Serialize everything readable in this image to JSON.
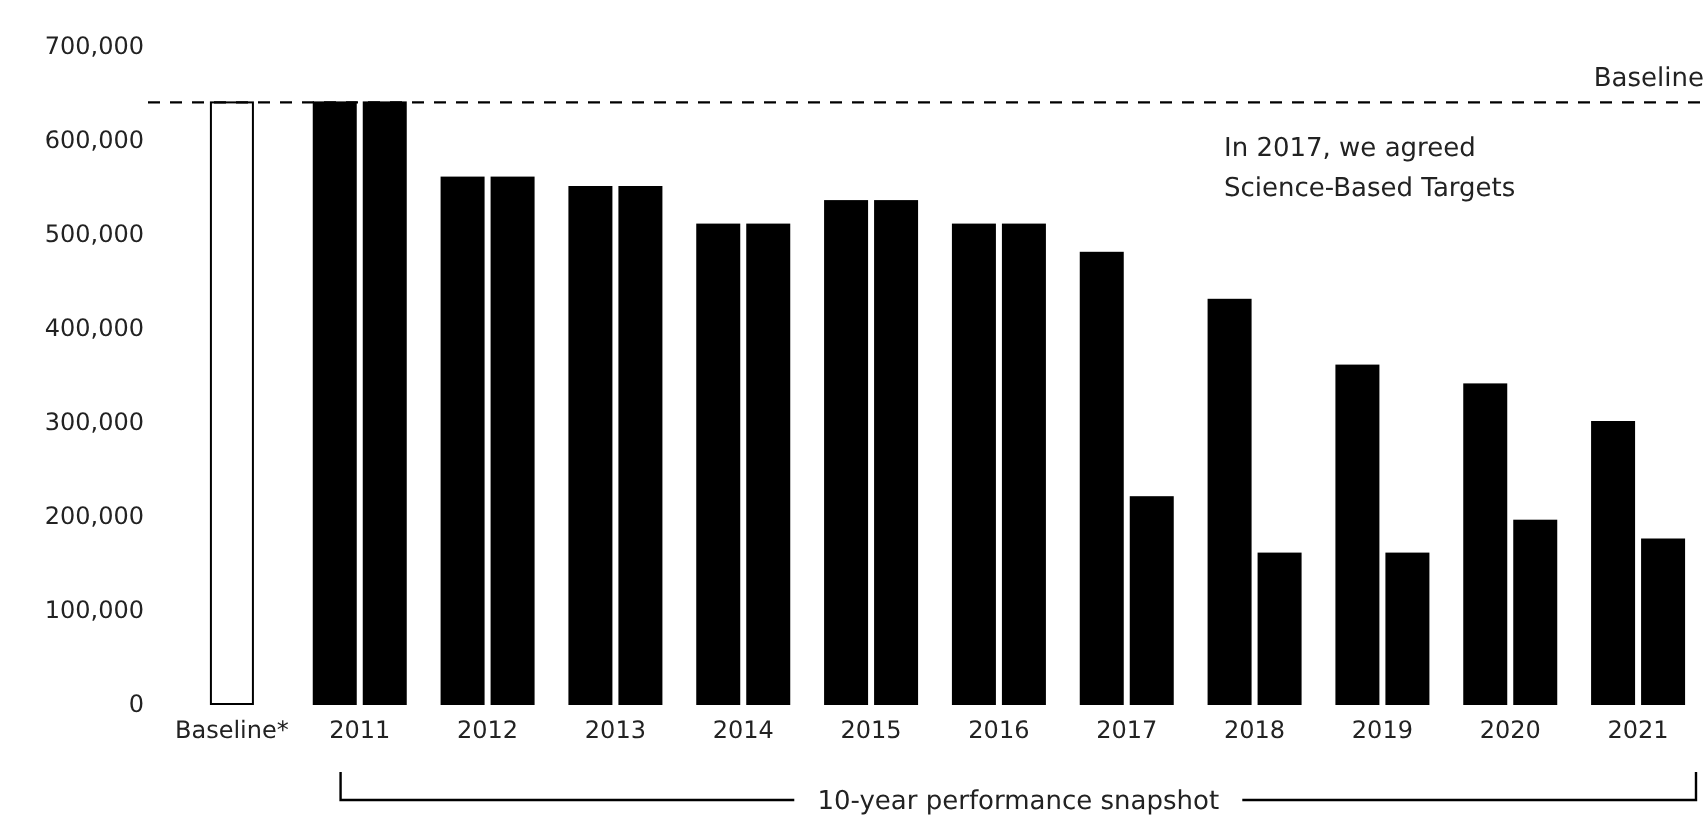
{
  "chart_data": {
    "type": "bar",
    "categories": [
      "Baseline*",
      "2011",
      "2012",
      "2013",
      "2014",
      "2015",
      "2016",
      "2017",
      "2018",
      "2019",
      "2020",
      "2021"
    ],
    "series": [
      {
        "color": "#000000",
        "colors": [
          "#ffffff",
          "#000000",
          "#000000",
          "#000000",
          "#000000",
          "#000000",
          "#000000",
          "#000000",
          "#000000",
          "#000000",
          "#000000",
          "#000000"
        ],
        "values": [
          640000,
          640000,
          560000,
          550000,
          510000,
          535000,
          510000,
          480000,
          430000,
          360000,
          340000,
          300000
        ]
      },
      {
        "color": "#000000",
        "values": [
          null,
          640000,
          560000,
          550000,
          510000,
          535000,
          510000,
          220000,
          160000,
          160000,
          195000,
          175000
        ]
      }
    ],
    "ylim": [
      0,
      700000
    ],
    "yticks": [
      {
        "value": 0,
        "label": "0"
      },
      {
        "value": 100000,
        "label": "100,000"
      },
      {
        "value": 200000,
        "label": "200,000"
      },
      {
        "value": 300000,
        "label": "300,000"
      },
      {
        "value": 400000,
        "label": "400,000"
      },
      {
        "value": 500000,
        "label": "500,000"
      },
      {
        "value": 600000,
        "label": "600,000"
      },
      {
        "value": 700000,
        "label": "700,000"
      }
    ],
    "grid": false,
    "ref_lines": [
      {
        "axis": "y",
        "value": 640000,
        "label": "Baseline",
        "line_style": "dashed",
        "color": "#000000"
      }
    ],
    "annotations": [
      "In 2017, we agreed\nScience-Based Targets",
      "10-year performance snapshot"
    ]
  }
}
